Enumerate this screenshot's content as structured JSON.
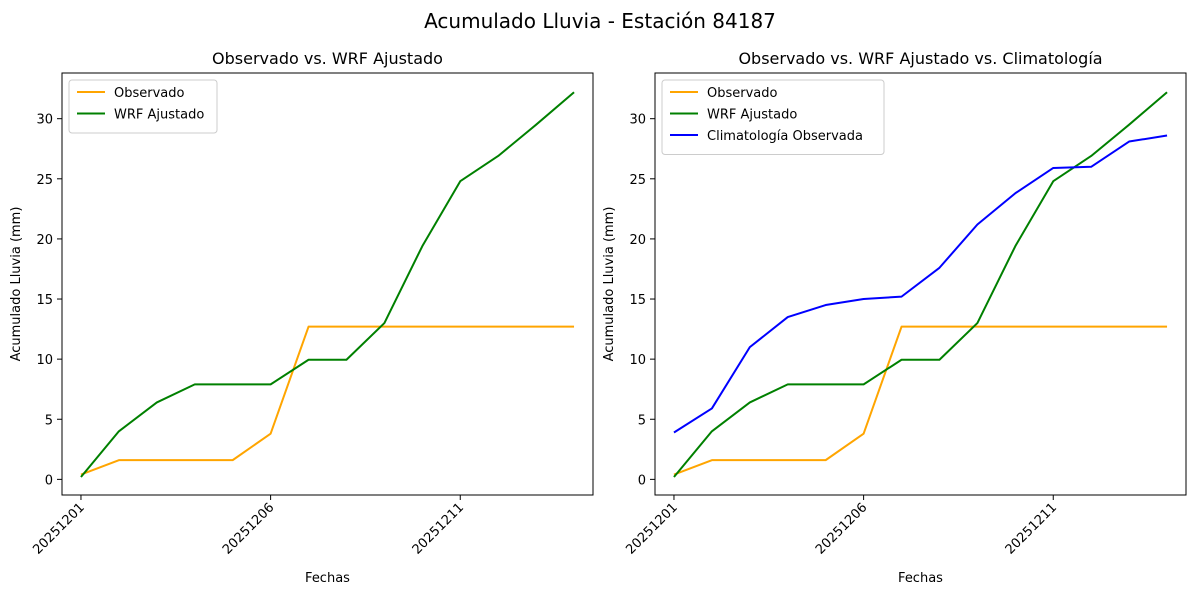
{
  "suptitle": "Acumulado Lluvia - Estación 84187",
  "chart_data": [
    {
      "type": "line",
      "title": "Observado vs. WRF Ajustado",
      "xlabel": "Fechas",
      "ylabel": "Acumulado Lluvia (mm)",
      "x": [
        "20251201",
        "20251202",
        "20251203",
        "20251204",
        "20251205",
        "20251206",
        "20251207",
        "20251208",
        "20251209",
        "20251210",
        "20251211",
        "20251212",
        "20251213",
        "20251214"
      ],
      "xticks": [
        "20251201",
        "20251206",
        "20251211"
      ],
      "yticks": [
        0,
        5,
        10,
        15,
        20,
        25,
        30
      ],
      "ylim": [
        -1.3,
        33.8
      ],
      "legend": "upper-left",
      "grid": false,
      "series": [
        {
          "name": "Observado",
          "color": "#ffa500",
          "values": [
            0.4,
            1.6,
            1.6,
            1.6,
            1.6,
            3.8,
            12.7,
            12.7,
            12.7,
            12.7,
            12.7,
            12.7,
            12.7,
            12.7
          ]
        },
        {
          "name": "WRF Ajustado",
          "color": "#008000",
          "values": [
            0.2,
            4.0,
            6.4,
            7.9,
            7.9,
            7.9,
            9.95,
            9.95,
            13.0,
            19.4,
            24.8,
            26.9,
            29.5,
            32.2
          ]
        }
      ]
    },
    {
      "type": "line",
      "title": "Observado vs. WRF Ajustado vs. Climatología",
      "xlabel": "Fechas",
      "ylabel": "Acumulado Lluvia (mm)",
      "x": [
        "20251201",
        "20251202",
        "20251203",
        "20251204",
        "20251205",
        "20251206",
        "20251207",
        "20251208",
        "20251209",
        "20251210",
        "20251211",
        "20251212",
        "20251213",
        "20251214"
      ],
      "xticks": [
        "20251201",
        "20251206",
        "20251211"
      ],
      "yticks": [
        0,
        5,
        10,
        15,
        20,
        25,
        30
      ],
      "ylim": [
        -1.3,
        33.8
      ],
      "legend": "upper-left",
      "grid": false,
      "series": [
        {
          "name": "Observado",
          "color": "#ffa500",
          "values": [
            0.4,
            1.6,
            1.6,
            1.6,
            1.6,
            3.8,
            12.7,
            12.7,
            12.7,
            12.7,
            12.7,
            12.7,
            12.7,
            12.7
          ]
        },
        {
          "name": "WRF Ajustado",
          "color": "#008000",
          "values": [
            0.2,
            4.0,
            6.4,
            7.9,
            7.9,
            7.9,
            9.95,
            9.95,
            13.0,
            19.4,
            24.8,
            26.9,
            29.5,
            32.2
          ]
        },
        {
          "name": "Climatología Observada",
          "color": "#0000ff",
          "values": [
            3.9,
            5.9,
            11.0,
            13.5,
            14.5,
            15.0,
            15.2,
            17.6,
            21.2,
            23.8,
            25.9,
            26.0,
            28.1,
            28.6
          ]
        }
      ]
    }
  ]
}
